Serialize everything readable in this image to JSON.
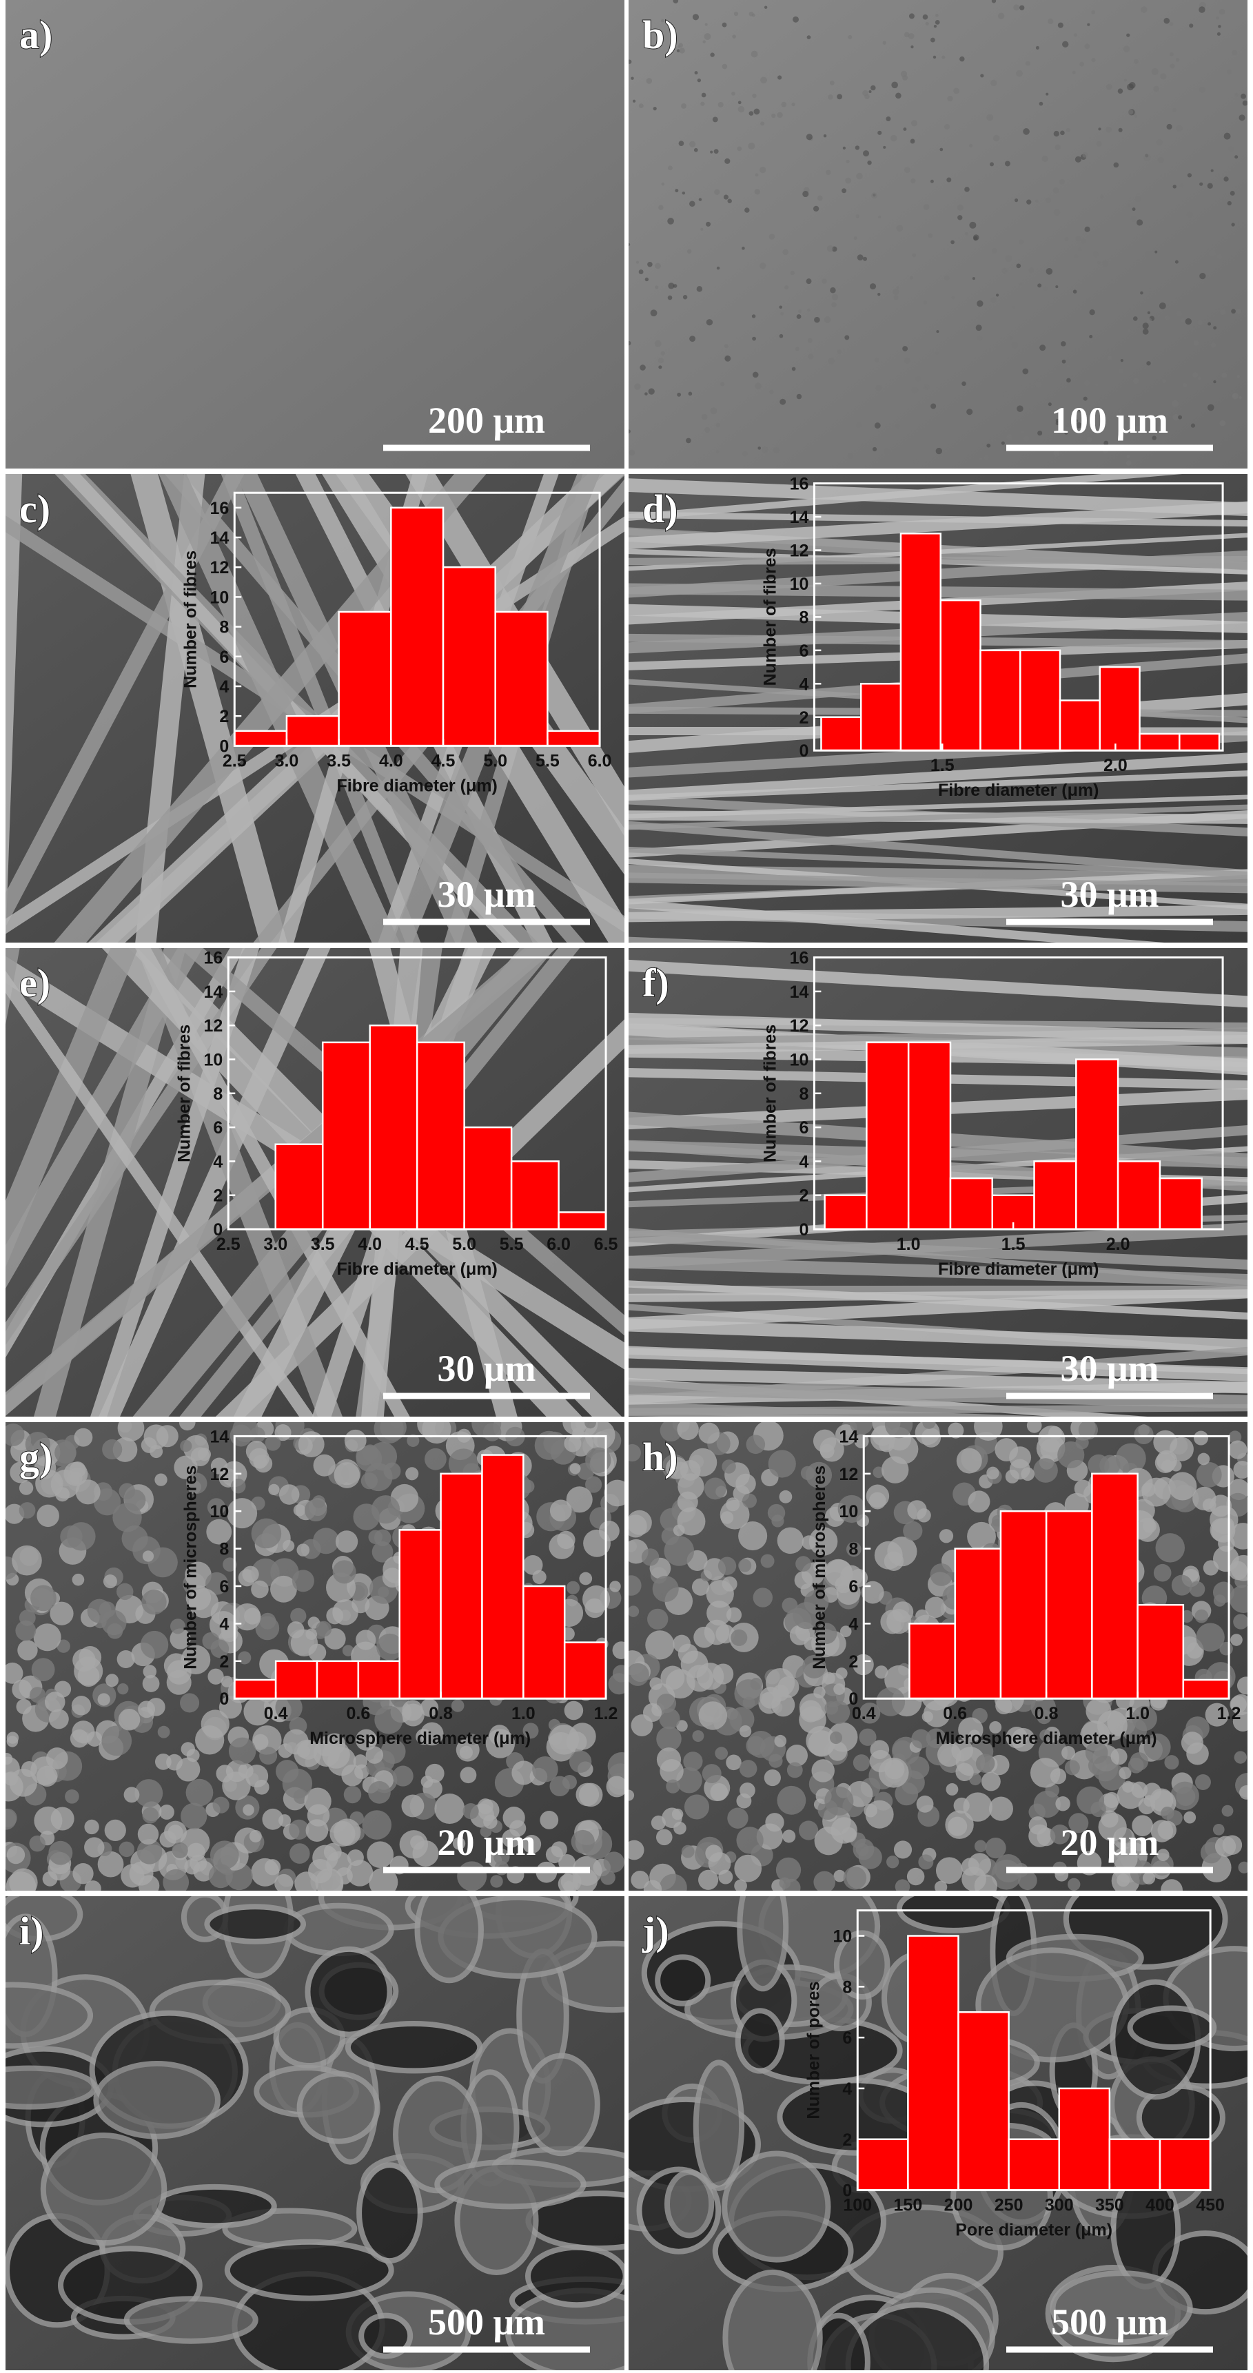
{
  "panels": [
    {
      "label": "a)",
      "scale_bar": "200 μm"
    },
    {
      "label": "b)",
      "scale_bar": "100 μm"
    },
    {
      "label": "c)",
      "scale_bar": "30 μm"
    },
    {
      "label": "d)",
      "scale_bar": "30 μm"
    },
    {
      "label": "e)",
      "scale_bar": "30 μm"
    },
    {
      "label": "f)",
      "scale_bar": "30 μm"
    },
    {
      "label": "g)",
      "scale_bar": "20 μm"
    },
    {
      "label": "h)",
      "scale_bar": "20 μm"
    },
    {
      "label": "i)",
      "scale_bar": "500 μm"
    },
    {
      "label": "j)",
      "scale_bar": "500 μm"
    }
  ],
  "chart_data": [
    {
      "type": "histogram",
      "color": "#ff0000",
      "xlabel": "Fibre diameter (μm)",
      "ylabel": "Number of fibres",
      "bins": [
        2.5,
        3,
        3.5,
        4,
        4.5,
        5,
        5.5,
        6
      ],
      "values": [
        1,
        2,
        9,
        16,
        12,
        9,
        1
      ],
      "xlim": [
        2.5,
        6
      ],
      "xticks": [
        2.5,
        {
          "value": 3,
          "label": "3.0"
        },
        3.5,
        {
          "value": 4,
          "label": "4.0"
        },
        4.5,
        {
          "value": 5,
          "label": "5.0"
        },
        5.5,
        {
          "value": 6,
          "label": "6.0"
        }
      ],
      "ylim": [
        0,
        17
      ],
      "yticks": [
        0,
        2,
        4,
        6,
        8,
        10,
        12,
        14,
        16
      ]
    },
    {
      "type": "histogram",
      "color": "#ff0000",
      "xlabel": "Fibre diameter (μm)",
      "ylabel": "Number of fibres",
      "bins": [
        1.15,
        1.265,
        1.38,
        1.495,
        1.61,
        1.725,
        1.84,
        1.955,
        2.07,
        2.185,
        2.3
      ],
      "values": [
        2,
        4,
        13,
        9,
        6,
        6,
        3,
        5,
        1,
        1
      ],
      "xlim": [
        1.13,
        2.31
      ],
      "xticks": [
        1.5,
        {
          "value": 2,
          "label": "2.0"
        }
      ],
      "ylim": [
        0,
        16
      ],
      "yticks": [
        0,
        2,
        4,
        6,
        8,
        10,
        12,
        14,
        16
      ]
    },
    {
      "type": "histogram",
      "color": "#ff0000",
      "xlabel": "Fibre diameter (μm)",
      "ylabel": "Number of fibres",
      "bins": [
        3,
        3.5,
        4,
        4.5,
        5,
        5.5,
        6,
        6.5
      ],
      "values": [
        5,
        11,
        12,
        11,
        6,
        4,
        1
      ],
      "xlim": [
        2.5,
        6.5
      ],
      "xticks": [
        2.5,
        {
          "value": 3,
          "label": "3.0"
        },
        3.5,
        {
          "value": 4,
          "label": "4.0"
        },
        4.5,
        {
          "value": 5,
          "label": "5.0"
        },
        5.5,
        {
          "value": 6,
          "label": "6.0"
        },
        6.5
      ],
      "ylim": [
        0,
        16
      ],
      "yticks": [
        0,
        2,
        4,
        6,
        8,
        10,
        12,
        14,
        16
      ]
    },
    {
      "type": "histogram",
      "color": "#ff0000",
      "xlabel": "Fibre diameter (μm)",
      "ylabel": "Number of fibres",
      "bins": [
        0.6,
        0.8,
        1,
        1.2,
        1.4,
        1.6,
        1.8,
        2,
        2.2,
        2.4
      ],
      "values": [
        2,
        11,
        11,
        3,
        2,
        4,
        10,
        4,
        3
      ],
      "xlim": [
        0.55,
        2.5
      ],
      "xticks": [
        {
          "value": 1,
          "label": "1.0"
        },
        1.5,
        {
          "value": 2,
          "label": "2.0"
        }
      ],
      "ylim": [
        0,
        16
      ],
      "yticks": [
        0,
        2,
        4,
        6,
        8,
        10,
        12,
        14,
        16
      ]
    },
    {
      "type": "histogram",
      "color": "#ff0000",
      "xlabel": "Microsphere diameter (μm)",
      "ylabel": "Number of microspheres",
      "bins": [
        0.3,
        0.4,
        0.5,
        0.6,
        0.7,
        0.8,
        0.9,
        1,
        1.1,
        1.2
      ],
      "values": [
        1,
        2,
        2,
        2,
        9,
        12,
        13,
        6,
        3
      ],
      "xlim": [
        0.3,
        1.2
      ],
      "xticks": [
        0.4,
        0.6,
        0.8,
        {
          "value": 1,
          "label": "1.0"
        },
        1.2
      ],
      "ylim": [
        0,
        14
      ],
      "yticks": [
        0,
        2,
        4,
        6,
        8,
        10,
        12,
        14
      ]
    },
    {
      "type": "histogram",
      "color": "#ff0000",
      "xlabel": "Microsphere diameter (μm)",
      "ylabel": "Number of microspheres",
      "bins": [
        0.5,
        0.6,
        0.7,
        0.8,
        0.9,
        1,
        1.1,
        1.2
      ],
      "values": [
        4,
        8,
        10,
        10,
        12,
        5,
        1
      ],
      "xlim": [
        0.4,
        1.2
      ],
      "xticks": [
        0.4,
        0.6,
        0.8,
        {
          "value": 1,
          "label": "1.0"
        },
        1.2
      ],
      "ylim": [
        0,
        14
      ],
      "yticks": [
        0,
        2,
        4,
        6,
        8,
        10,
        12,
        14
      ]
    },
    {
      "type": "histogram",
      "color": "#ff0000",
      "xlabel": "Pore diameter (μm)",
      "ylabel": "Number of pores",
      "bins": [
        100,
        150,
        200,
        250,
        300,
        350,
        400,
        450
      ],
      "values": [
        2,
        10,
        7,
        2,
        4,
        2,
        2
      ],
      "xlim": [
        100,
        450
      ],
      "xticks": [
        100,
        150,
        200,
        250,
        300,
        350,
        400,
        450
      ],
      "ylim": [
        0,
        11
      ],
      "yticks": [
        0,
        2,
        4,
        6,
        8,
        10
      ]
    }
  ]
}
